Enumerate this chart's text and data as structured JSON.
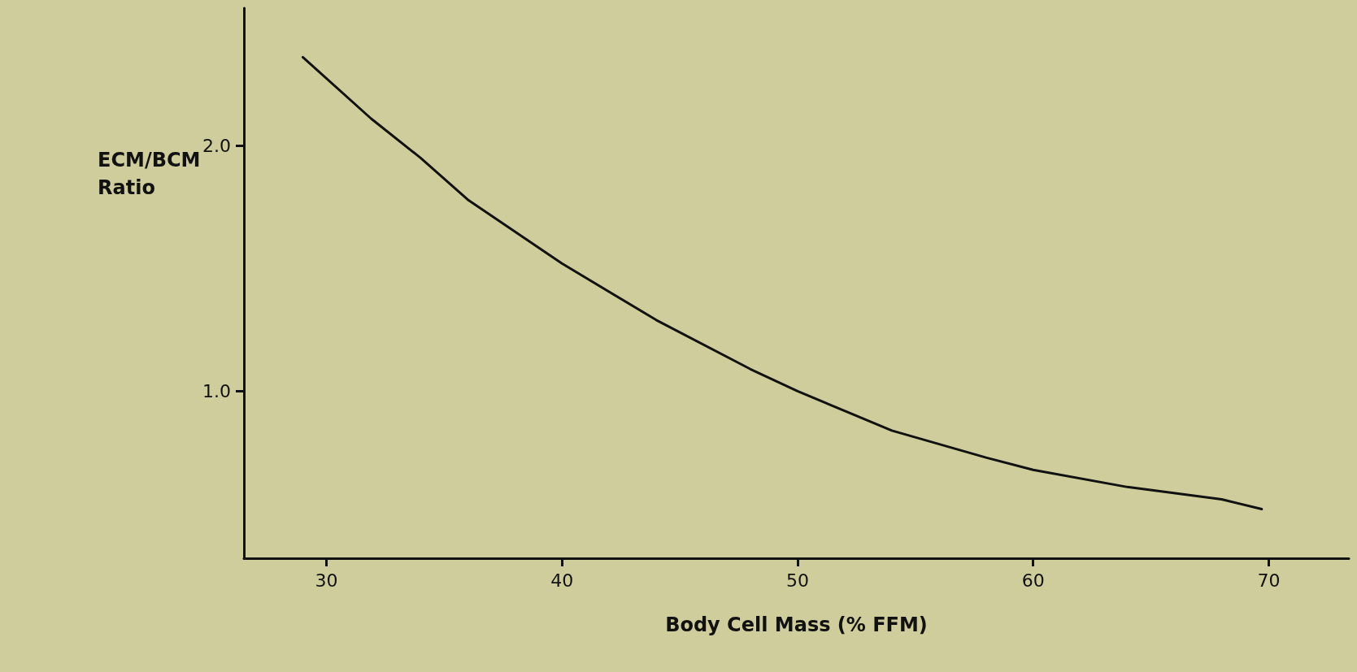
{
  "chart_data": {
    "type": "line",
    "xlabel": "Body Cell Mass (% FFM)",
    "ylabel": "ECM/BCM Ratio",
    "x": [
      29,
      31.9,
      34,
      36,
      40,
      44,
      48,
      50,
      54,
      58,
      60,
      64,
      68,
      69.7
    ],
    "series": [
      {
        "color": "#111111",
        "values": [
          2.36,
          2.11,
          1.95,
          1.78,
          1.52,
          1.29,
          1.09,
          1.0,
          0.84,
          0.73,
          0.68,
          0.61,
          0.56,
          0.52
        ]
      }
    ],
    "xlim": [
      26.5,
      73.4
    ],
    "xticks": [
      30,
      40,
      50,
      60,
      70
    ],
    "ylim": [
      0.32,
      2.56
    ],
    "yticks": [
      {
        "value": 1,
        "label": "1.0"
      },
      {
        "value": 2,
        "label": "2.0"
      }
    ],
    "marker": "none",
    "line_style": "solid"
  }
}
